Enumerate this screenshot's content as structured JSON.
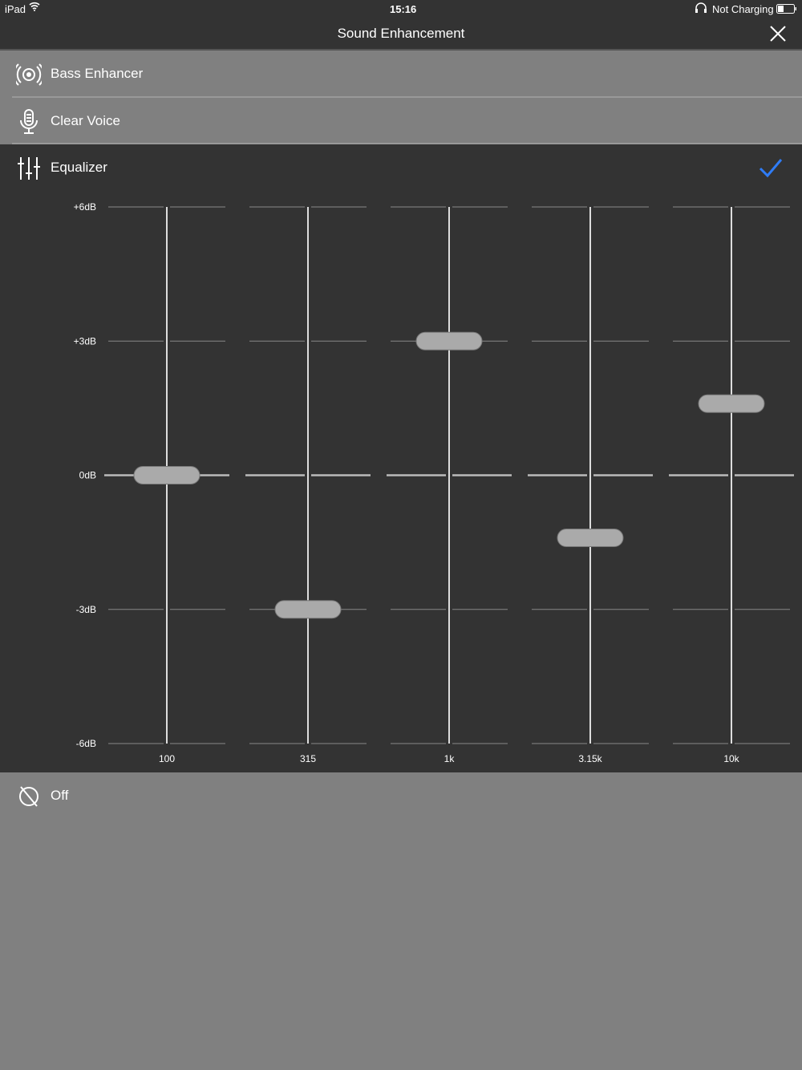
{
  "status": {
    "device": "iPad",
    "time": "15:16",
    "battery": "Not Charging"
  },
  "nav": {
    "title": "Sound Enhancement"
  },
  "options": [
    {
      "label": "Bass Enhancer",
      "icon": "speaker-waves-icon"
    },
    {
      "label": "Clear Voice",
      "icon": "microphone-icon"
    },
    {
      "label": "Equalizer",
      "icon": "sliders-icon",
      "selected": true
    },
    {
      "label": "Off",
      "icon": "off-icon"
    }
  ],
  "colors": {
    "accent": "#2f7cf6",
    "selected_bg": "#333333",
    "bg": "#808080"
  },
  "equalizer": {
    "y_labels": [
      "+6dB",
      "+3dB",
      "0dB",
      "-3dB",
      "-6dB"
    ],
    "y_values": [
      6,
      3,
      0,
      -3,
      -6
    ],
    "range": [
      -6,
      6
    ],
    "bands": [
      {
        "label": "100",
        "gain": 0
      },
      {
        "label": "315",
        "gain": -3
      },
      {
        "label": "1k",
        "gain": 3
      },
      {
        "label": "3.15k",
        "gain": -1.4
      },
      {
        "label": "10k",
        "gain": 1.6
      }
    ]
  }
}
